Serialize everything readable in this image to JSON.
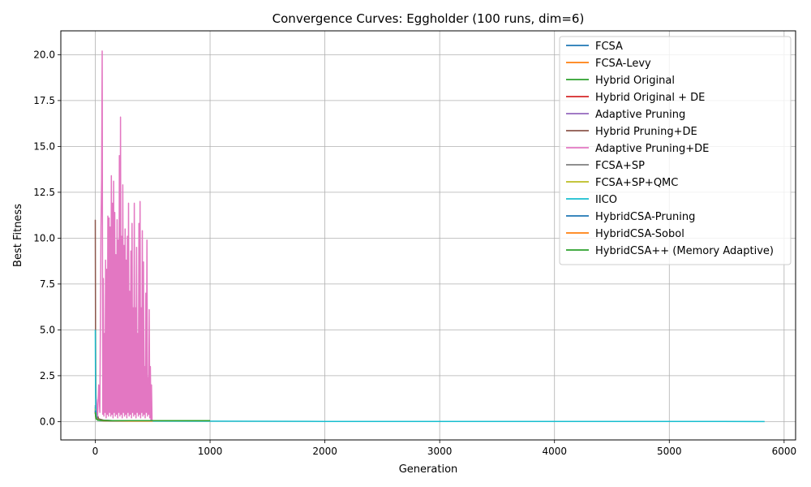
{
  "chart_data": {
    "type": "line",
    "title": "Convergence Curves: Eggholder (100 runs, dim=6)",
    "xlabel": "Generation",
    "ylabel": "Best Fitness",
    "xlim": [
      -300,
      6100
    ],
    "ylim": [
      -1.0,
      21.3
    ],
    "xticks": [
      0,
      1000,
      2000,
      3000,
      4000,
      5000,
      6000
    ],
    "xtick_labels": [
      "0",
      "1000",
      "2000",
      "3000",
      "4000",
      "5000",
      "6000"
    ],
    "yticks": [
      0.0,
      2.5,
      5.0,
      7.5,
      10.0,
      12.5,
      15.0,
      17.5,
      20.0
    ],
    "ytick_labels": [
      "0.0",
      "2.5",
      "5.0",
      "7.5",
      "10.0",
      "12.5",
      "15.0",
      "17.5",
      "20.0"
    ],
    "grid": true,
    "legend_position": "top-right",
    "series": [
      {
        "name": "FCSA",
        "color": "#1f77b4",
        "x": [
          0,
          3,
          8,
          20,
          60,
          150,
          300,
          500
        ],
        "y": [
          0.8,
          0.5,
          0.3,
          0.15,
          0.08,
          0.05,
          0.03,
          0.03
        ]
      },
      {
        "name": "FCSA-Levy",
        "color": "#ff7f0e",
        "x": [
          0,
          3,
          8,
          20,
          60,
          150,
          300,
          500
        ],
        "y": [
          0.6,
          0.4,
          0.25,
          0.12,
          0.07,
          0.04,
          0.03,
          0.03
        ]
      },
      {
        "name": "Hybrid Original",
        "color": "#2ca02c",
        "x": [
          0,
          3,
          8,
          20,
          60,
          150,
          300,
          500
        ],
        "y": [
          0.7,
          0.4,
          0.2,
          0.1,
          0.06,
          0.04,
          0.03,
          0.03
        ]
      },
      {
        "name": "Hybrid Original + DE",
        "color": "#d62728",
        "x": [
          0,
          3,
          8,
          20,
          60,
          150,
          300,
          500
        ],
        "y": [
          0.5,
          0.3,
          0.18,
          0.1,
          0.05,
          0.04,
          0.03,
          0.03
        ]
      },
      {
        "name": "Adaptive Pruning",
        "color": "#9467bd",
        "x": [
          0,
          3,
          8,
          20,
          60,
          150,
          300,
          500
        ],
        "y": [
          0.6,
          0.35,
          0.2,
          0.1,
          0.06,
          0.04,
          0.03,
          0.03
        ]
      },
      {
        "name": "Hybrid Pruning+DE",
        "color": "#8c564b",
        "x": [
          0,
          2,
          5,
          10,
          30,
          80,
          200,
          500
        ],
        "y": [
          11.0,
          5.0,
          1.5,
          0.5,
          0.15,
          0.06,
          0.04,
          0.03
        ]
      },
      {
        "name": "Adaptive Pruning+DE",
        "color": "#e377c2",
        "x": [
          0,
          10,
          20,
          30,
          40,
          50,
          55,
          60,
          65,
          70,
          75,
          80,
          85,
          90,
          95,
          100,
          105,
          110,
          115,
          120,
          125,
          130,
          135,
          140,
          145,
          150,
          155,
          160,
          165,
          170,
          175,
          180,
          185,
          190,
          195,
          200,
          205,
          210,
          215,
          220,
          225,
          230,
          235,
          240,
          245,
          250,
          255,
          260,
          265,
          270,
          275,
          280,
          285,
          290,
          295,
          300,
          305,
          310,
          315,
          320,
          325,
          330,
          335,
          340,
          345,
          350,
          355,
          360,
          365,
          370,
          375,
          380,
          385,
          390,
          395,
          400,
          405,
          410,
          415,
          420,
          425,
          430,
          435,
          440,
          445,
          450,
          455,
          460,
          465,
          470,
          475,
          480,
          485,
          490,
          495,
          500
        ],
        "y": [
          0.5,
          1.2,
          0.3,
          2.0,
          0.5,
          10.6,
          13.2,
          20.2,
          0.4,
          7.8,
          0.3,
          4.8,
          0.5,
          8.8,
          0.2,
          8.3,
          0.4,
          11.2,
          0.3,
          11.1,
          0.5,
          10.6,
          0.3,
          13.4,
          0.4,
          11.9,
          0.2,
          13.1,
          0.5,
          11.4,
          0.3,
          9.1,
          0.4,
          11.0,
          0.2,
          9.9,
          0.5,
          14.5,
          0.3,
          16.6,
          0.4,
          10.1,
          0.2,
          12.9,
          0.5,
          9.6,
          0.3,
          10.5,
          0.4,
          8.8,
          0.2,
          10.1,
          0.5,
          11.9,
          0.3,
          7.1,
          0.4,
          9.3,
          0.2,
          10.8,
          0.5,
          6.2,
          0.3,
          11.9,
          0.4,
          6.2,
          0.2,
          9.5,
          0.5,
          4.8,
          0.3,
          10.8,
          0.4,
          12.0,
          0.2,
          6.2,
          0.5,
          10.4,
          0.3,
          8.7,
          0.4,
          3.0,
          0.2,
          7.0,
          0.5,
          9.9,
          0.3,
          2.4,
          0.4,
          6.1,
          0.2,
          3.0,
          0.05,
          2.0,
          0.05,
          0.05
        ]
      },
      {
        "name": "FCSA+SP",
        "color": "#7f7f7f",
        "x": [
          0,
          3,
          8,
          20,
          60,
          150,
          300,
          500
        ],
        "y": [
          0.9,
          0.5,
          0.25,
          0.12,
          0.06,
          0.04,
          0.03,
          0.03
        ]
      },
      {
        "name": "FCSA+SP+QMC",
        "color": "#bcbd22",
        "x": [
          0,
          3,
          8,
          20,
          60,
          150,
          300,
          500
        ],
        "y": [
          0.7,
          0.45,
          0.22,
          0.11,
          0.06,
          0.04,
          0.03,
          0.03
        ]
      },
      {
        "name": "IICO",
        "color": "#17becf",
        "x": [
          0,
          2,
          5,
          10,
          20,
          50,
          150,
          500,
          1000,
          2000,
          3000,
          4000,
          5000,
          5830
        ],
        "y": [
          5.0,
          2.0,
          0.6,
          0.2,
          0.08,
          0.05,
          0.04,
          0.03,
          0.02,
          0.01,
          0.01,
          0.01,
          0.01,
          0.0
        ]
      },
      {
        "name": "HybridCSA-Pruning",
        "color": "#1f77b4",
        "x": [
          0,
          3,
          8,
          20,
          60,
          150,
          300,
          500
        ],
        "y": [
          0.6,
          0.35,
          0.2,
          0.1,
          0.06,
          0.04,
          0.03,
          0.03
        ]
      },
      {
        "name": "HybridCSA-Sobol",
        "color": "#ff7f0e",
        "x": [
          0,
          3,
          8,
          20,
          60,
          150,
          300,
          500
        ],
        "y": [
          0.5,
          0.3,
          0.18,
          0.09,
          0.05,
          0.04,
          0.03,
          0.03
        ]
      },
      {
        "name": "HybridCSA++ (Memory Adaptive)",
        "color": "#2ca02c",
        "x": [
          0,
          3,
          8,
          20,
          60,
          150,
          300,
          600,
          1000
        ],
        "y": [
          0.5,
          0.3,
          0.15,
          0.08,
          0.06,
          0.05,
          0.05,
          0.05,
          0.05
        ]
      }
    ]
  }
}
